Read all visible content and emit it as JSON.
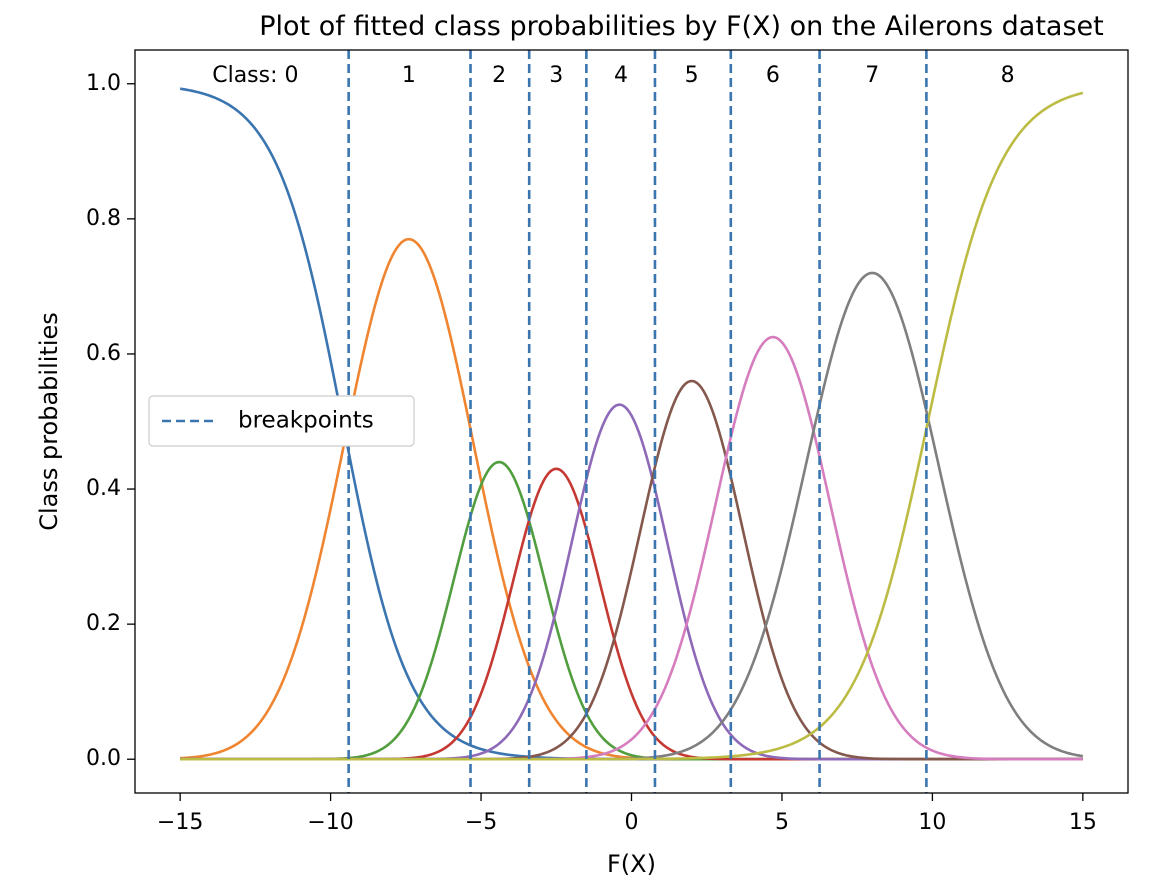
{
  "chart_data": {
    "type": "line",
    "title": "Plot of fitted class probabilities by F(X) on the Ailerons dataset",
    "xlabel": "F(X)",
    "ylabel": "Class probabilities",
    "xlim": [
      -16.5,
      16.5
    ],
    "ylim": [
      -0.05,
      1.05
    ],
    "xticks": [
      -15,
      -10,
      -5,
      0,
      5,
      10,
      15
    ],
    "xtick_labels": [
      "−15",
      "−10",
      "−5",
      "0",
      "5",
      "10",
      "15"
    ],
    "yticks": [
      0.0,
      0.2,
      0.4,
      0.6,
      0.8,
      1.0
    ],
    "ytick_labels": [
      "0.0",
      "0.2",
      "0.4",
      "0.6",
      "0.8",
      "1.0"
    ],
    "grid": false,
    "breakpoints": [
      -9.4,
      -5.35,
      -3.4,
      -1.5,
      0.78,
      3.3,
      6.25,
      9.8
    ],
    "breakpoints_color": "#3a75b0",
    "legend": {
      "entries": [
        "breakpoints"
      ],
      "placement": "center-left"
    },
    "class_labels": [
      "Class: 0",
      "1",
      "2",
      "3",
      "4",
      "5",
      "6",
      "7",
      "8"
    ],
    "class_label_x": [
      -12.5,
      -7.4,
      -4.4,
      -2.5,
      -0.35,
      2.0,
      4.7,
      8.0,
      12.5
    ],
    "series": [
      {
        "class": 0,
        "color": "#3a75b0",
        "kind": "sigmoid_down",
        "center": -9.6,
        "scale": 1.1
      },
      {
        "class": 1,
        "color": "#ef8531",
        "kind": "peak",
        "center": -7.4,
        "peak": 0.77,
        "sigma": 2.15
      },
      {
        "class": 2,
        "color": "#519e3e",
        "kind": "peak",
        "center": -4.4,
        "peak": 0.44,
        "sigma": 1.5
      },
      {
        "class": 3,
        "color": "#c53932",
        "kind": "peak",
        "center": -2.5,
        "peak": 0.43,
        "sigma": 1.45
      },
      {
        "class": 4,
        "color": "#8d69b8",
        "kind": "peak",
        "center": -0.4,
        "peak": 0.525,
        "sigma": 1.6
      },
      {
        "class": 5,
        "color": "#84584d",
        "kind": "peak",
        "center": 2.0,
        "peak": 0.56,
        "sigma": 1.7
      },
      {
        "class": 6,
        "color": "#d57dbe",
        "kind": "peak",
        "center": 4.7,
        "peak": 0.625,
        "sigma": 1.9
      },
      {
        "class": 7,
        "color": "#7f7f7f",
        "kind": "peak",
        "center": 8.0,
        "peak": 0.72,
        "sigma": 2.2
      },
      {
        "class": 8,
        "color": "#bcbc45",
        "kind": "sigmoid_up",
        "center": 9.85,
        "scale": 1.2
      }
    ],
    "x_range": [
      -15,
      15
    ]
  }
}
